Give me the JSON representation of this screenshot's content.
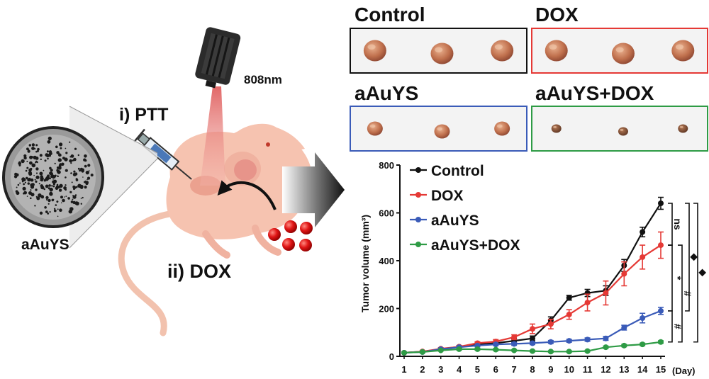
{
  "illustration": {
    "laser_label": "808nm",
    "step1_label": "i) PTT",
    "step2_label": "ii) DOX",
    "particle_label": "aAuYS"
  },
  "photos": [
    {
      "label": "Control",
      "border_color": "#111111",
      "tumor_size": "large"
    },
    {
      "label": "DOX",
      "border_color": "#e53935",
      "tumor_size": "large"
    },
    {
      "label": "aAuYS",
      "border_color": "#3a5bb8",
      "tumor_size": "medium"
    },
    {
      "label": "aAuYS+DOX",
      "border_color": "#2e9b45",
      "tumor_size": "small"
    }
  ],
  "chart_data": {
    "type": "line",
    "ylabel": "Tumor volume (mm³)",
    "xunit": "(Day)",
    "x": [
      1,
      2,
      3,
      4,
      5,
      6,
      7,
      8,
      9,
      10,
      11,
      12,
      13,
      14,
      15
    ],
    "ylim": [
      0,
      800
    ],
    "yticks": [
      0,
      200,
      400,
      600,
      800
    ],
    "legend_position": "top-left",
    "series": [
      {
        "name": "Control",
        "color": "#111111",
        "values": [
          15,
          20,
          30,
          40,
          50,
          55,
          65,
          75,
          150,
          245,
          265,
          275,
          380,
          520,
          640
        ],
        "errors": [
          3,
          3,
          4,
          5,
          6,
          6,
          8,
          10,
          15,
          10,
          15,
          20,
          25,
          20,
          25
        ]
      },
      {
        "name": "DOX",
        "color": "#e53935",
        "values": [
          15,
          20,
          32,
          40,
          55,
          62,
          80,
          115,
          135,
          175,
          225,
          265,
          345,
          415,
          465
        ],
        "errors": [
          3,
          3,
          4,
          5,
          6,
          8,
          10,
          20,
          20,
          20,
          35,
          50,
          50,
          50,
          55
        ]
      },
      {
        "name": "aAuYS",
        "color": "#3a5bb8",
        "values": [
          15,
          18,
          30,
          38,
          45,
          50,
          52,
          55,
          60,
          65,
          70,
          75,
          120,
          160,
          190
        ],
        "errors": [
          3,
          3,
          4,
          5,
          5,
          5,
          6,
          6,
          6,
          6,
          7,
          8,
          10,
          20,
          15
        ]
      },
      {
        "name": "aAuYS+DOX",
        "color": "#2e9b45",
        "values": [
          15,
          18,
          25,
          30,
          30,
          28,
          25,
          22,
          20,
          20,
          22,
          38,
          45,
          50,
          60
        ],
        "errors": [
          3,
          3,
          3,
          4,
          4,
          4,
          3,
          3,
          3,
          3,
          3,
          5,
          5,
          5,
          5
        ]
      }
    ],
    "significance": [
      {
        "label": "ns"
      },
      {
        "label": "*"
      },
      {
        "label": "#"
      },
      {
        "label": "#"
      },
      {
        "label": "◆"
      },
      {
        "label": "◆"
      }
    ]
  }
}
